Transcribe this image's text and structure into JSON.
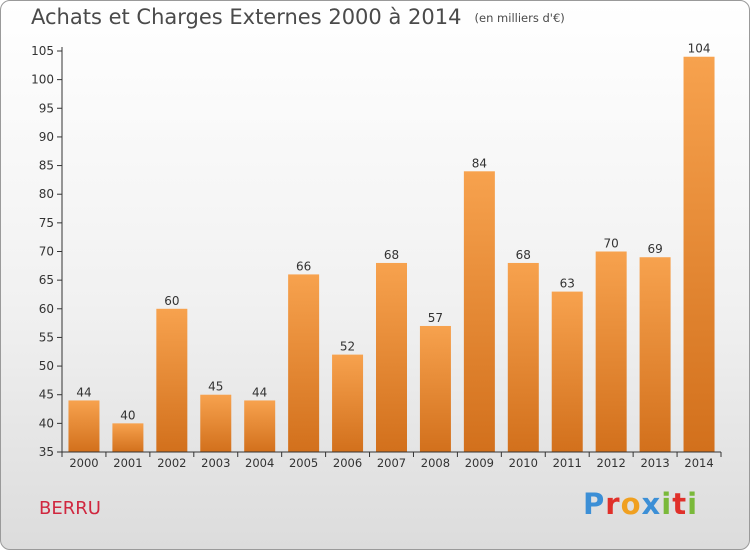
{
  "header": {
    "title": "Achats et Charges Externes 2000 à 2014",
    "unit": "(en milliers d'€)"
  },
  "footer": {
    "commune": "BERRU",
    "logo_letters": [
      "P",
      "r",
      "o",
      "x",
      "i",
      "t",
      "i"
    ]
  },
  "colors": {
    "bar_top": "#f7a24e",
    "bar_bottom": "#d2701c",
    "axis": "#333333",
    "text": "#333333",
    "logo": [
      "#3c8fd6",
      "#e0302a",
      "#f0a020",
      "#3c8fd6",
      "#7ab93a",
      "#e0302a",
      "#7ab93a"
    ]
  },
  "chart_data": {
    "type": "bar",
    "title": "Achats et Charges Externes 2000 à 2014",
    "subtitle": "(en milliers d'€)",
    "xlabel": "",
    "ylabel": "",
    "categories": [
      "2000",
      "2001",
      "2002",
      "2003",
      "2004",
      "2005",
      "2006",
      "2007",
      "2008",
      "2009",
      "2010",
      "2011",
      "2012",
      "2013",
      "2014"
    ],
    "values": [
      44,
      40,
      60,
      45,
      44,
      66,
      52,
      68,
      57,
      84,
      68,
      63,
      70,
      69,
      104
    ],
    "ylim": [
      35,
      105
    ],
    "yticks": [
      35,
      40,
      45,
      50,
      55,
      60,
      65,
      70,
      75,
      80,
      85,
      90,
      95,
      100,
      105
    ],
    "grid": false,
    "legend": "none"
  }
}
